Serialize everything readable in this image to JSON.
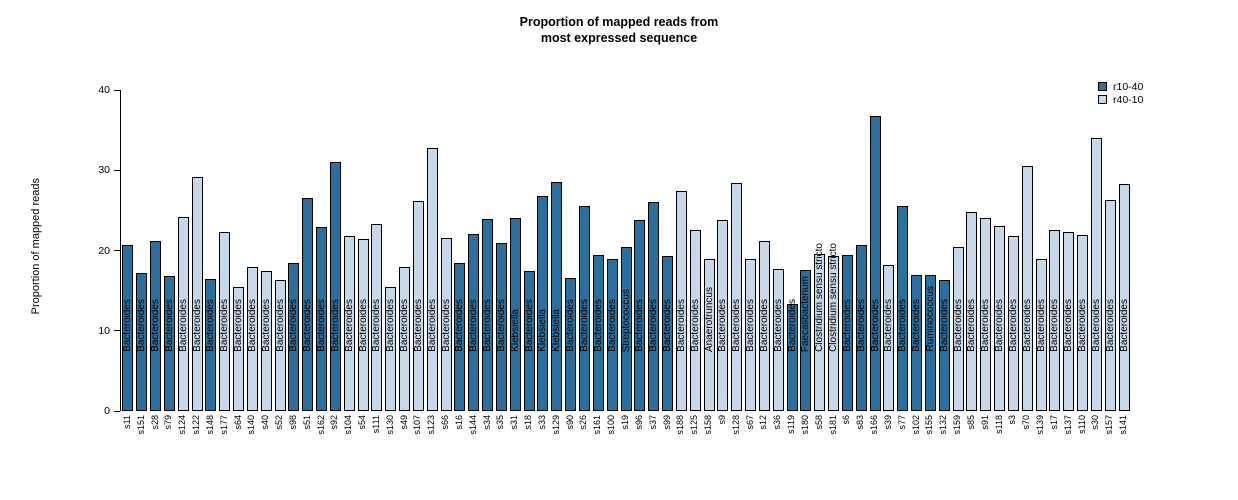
{
  "title": {
    "line1": "Proportion of mapped reads from",
    "line2": "most expressed sequence"
  },
  "y_axis": {
    "label": "Proportion of mapped reads",
    "ticks": [
      0,
      10,
      20,
      30,
      40
    ],
    "max": 40
  },
  "legend": [
    {
      "label": "r10-40",
      "color": "#2a6f9e"
    },
    {
      "label": "r40-10",
      "color": "#c6d8ea"
    }
  ],
  "chart_data": {
    "type": "bar",
    "title": "Proportion of mapped reads from most expressed sequence",
    "xlabel": "",
    "ylabel": "Proportion of mapped reads",
    "ylim": [
      0,
      40
    ],
    "grid": false,
    "legend_position": "top-right",
    "groups": {
      "r10-40": "#2a6f9e",
      "r40-10": "#c6d8ea"
    },
    "bars": [
      {
        "sample": "s11",
        "genus": "Bacteroides",
        "value": 20.7,
        "group": "r10-40"
      },
      {
        "sample": "s151",
        "genus": "Bacteroides",
        "value": 17.2,
        "group": "r10-40"
      },
      {
        "sample": "s28",
        "genus": "Bacteroides",
        "value": 21.2,
        "group": "r10-40"
      },
      {
        "sample": "s79",
        "genus": "Bacteroides",
        "value": 16.8,
        "group": "r10-40"
      },
      {
        "sample": "s124",
        "genus": "Bacteroides",
        "value": 24.2,
        "group": "r40-10"
      },
      {
        "sample": "s122",
        "genus": "Bacteroides",
        "value": 29.1,
        "group": "r40-10"
      },
      {
        "sample": "s148",
        "genus": "Bacteroides",
        "value": 16.4,
        "group": "r10-40"
      },
      {
        "sample": "s177",
        "genus": "Bacteroides",
        "value": 22.3,
        "group": "r40-10"
      },
      {
        "sample": "s64",
        "genus": "Bacteroides",
        "value": 15.4,
        "group": "r40-10"
      },
      {
        "sample": "s140",
        "genus": "Bacteroides",
        "value": 18.0,
        "group": "r40-10"
      },
      {
        "sample": "s40",
        "genus": "Bacteroides",
        "value": 17.4,
        "group": "r40-10"
      },
      {
        "sample": "s52",
        "genus": "Bacteroides",
        "value": 16.3,
        "group": "r40-10"
      },
      {
        "sample": "s98",
        "genus": "Bacteroides",
        "value": 18.4,
        "group": "r10-40"
      },
      {
        "sample": "s51",
        "genus": "Bacteroides",
        "value": 26.5,
        "group": "r10-40"
      },
      {
        "sample": "s162",
        "genus": "Bacteroides",
        "value": 22.9,
        "group": "r10-40"
      },
      {
        "sample": "s92",
        "genus": "Bacteroides",
        "value": 31.0,
        "group": "r10-40"
      },
      {
        "sample": "s104",
        "genus": "Bacteroides",
        "value": 21.8,
        "group": "r40-10"
      },
      {
        "sample": "s54",
        "genus": "Bacteroides",
        "value": 21.4,
        "group": "r40-10"
      },
      {
        "sample": "s111",
        "genus": "Bacteroides",
        "value": 23.3,
        "group": "r40-10"
      },
      {
        "sample": "s130",
        "genus": "Bacteroides",
        "value": 15.4,
        "group": "r40-10"
      },
      {
        "sample": "s49",
        "genus": "Bacteroides",
        "value": 18.0,
        "group": "r40-10"
      },
      {
        "sample": "s107",
        "genus": "Bacteroides",
        "value": 26.2,
        "group": "r40-10"
      },
      {
        "sample": "s123",
        "genus": "Bacteroides",
        "value": 32.8,
        "group": "r40-10"
      },
      {
        "sample": "s66",
        "genus": "Bacteroides",
        "value": 21.6,
        "group": "r40-10"
      },
      {
        "sample": "s16",
        "genus": "Bacteroides",
        "value": 18.5,
        "group": "r10-40"
      },
      {
        "sample": "s144",
        "genus": "Bacteroides",
        "value": 22.0,
        "group": "r10-40"
      },
      {
        "sample": "s34",
        "genus": "Bacteroides",
        "value": 23.9,
        "group": "r10-40"
      },
      {
        "sample": "s35",
        "genus": "Bacteroides",
        "value": 20.9,
        "group": "r10-40"
      },
      {
        "sample": "s31",
        "genus": "Klebsiella",
        "value": 24.0,
        "group": "r10-40"
      },
      {
        "sample": "s18",
        "genus": "Bacteroides",
        "value": 17.4,
        "group": "r10-40"
      },
      {
        "sample": "s33",
        "genus": "Klebsiella",
        "value": 26.8,
        "group": "r10-40"
      },
      {
        "sample": "s129",
        "genus": "Klebsiella",
        "value": 28.6,
        "group": "r10-40"
      },
      {
        "sample": "s90",
        "genus": "Bacteroides",
        "value": 16.6,
        "group": "r10-40"
      },
      {
        "sample": "s26",
        "genus": "Bacteroides",
        "value": 25.5,
        "group": "r10-40"
      },
      {
        "sample": "s161",
        "genus": "Bacteroides",
        "value": 19.5,
        "group": "r10-40"
      },
      {
        "sample": "s100",
        "genus": "Bacteroides",
        "value": 19.0,
        "group": "r10-40"
      },
      {
        "sample": "s19",
        "genus": "Streptococcus",
        "value": 20.4,
        "group": "r10-40"
      },
      {
        "sample": "s96",
        "genus": "Bacteroides",
        "value": 23.8,
        "group": "r10-40"
      },
      {
        "sample": "s37",
        "genus": "Bacteroides",
        "value": 26.0,
        "group": "r10-40"
      },
      {
        "sample": "s99",
        "genus": "Bacteroides",
        "value": 19.3,
        "group": "r10-40"
      },
      {
        "sample": "s188",
        "genus": "Bacteroides",
        "value": 27.4,
        "group": "r40-10"
      },
      {
        "sample": "s125",
        "genus": "Bacteroides",
        "value": 22.5,
        "group": "r40-10"
      },
      {
        "sample": "s158",
        "genus": "Anaerotruncus",
        "value": 19.0,
        "group": "r40-10"
      },
      {
        "sample": "s9",
        "genus": "Bacteroides",
        "value": 23.8,
        "group": "r40-10"
      },
      {
        "sample": "s128",
        "genus": "Bacteroides",
        "value": 28.4,
        "group": "r40-10"
      },
      {
        "sample": "s67",
        "genus": "Bacteroides",
        "value": 19.0,
        "group": "r40-10"
      },
      {
        "sample": "s12",
        "genus": "Bacteroides",
        "value": 21.2,
        "group": "r40-10"
      },
      {
        "sample": "s36",
        "genus": "Bacteroides",
        "value": 17.7,
        "group": "r40-10"
      },
      {
        "sample": "s119",
        "genus": "Bacteroides",
        "value": 13.3,
        "group": "r10-40"
      },
      {
        "sample": "s180",
        "genus": "Faecalibacterium",
        "value": 17.6,
        "group": "r10-40"
      },
      {
        "sample": "s58",
        "genus": "Clostridium sensu stricto",
        "value": 19.6,
        "group": "r40-10"
      },
      {
        "sample": "s181",
        "genus": "Clostridium sensu stricto",
        "value": 19.3,
        "group": "r40-10"
      },
      {
        "sample": "s6",
        "genus": "Bacteroides",
        "value": 19.4,
        "group": "r10-40"
      },
      {
        "sample": "s83",
        "genus": "Bacteroides",
        "value": 20.7,
        "group": "r10-40"
      },
      {
        "sample": "s166",
        "genus": "Bacteroides",
        "value": 36.8,
        "group": "r10-40"
      },
      {
        "sample": "s39",
        "genus": "Bacteroides",
        "value": 18.2,
        "group": "r40-10"
      },
      {
        "sample": "s77",
        "genus": "Bacteroides",
        "value": 25.5,
        "group": "r10-40"
      },
      {
        "sample": "s102",
        "genus": "Bacteroides",
        "value": 17.0,
        "group": "r10-40"
      },
      {
        "sample": "s155",
        "genus": "Ruminococcus",
        "value": 17.0,
        "group": "r10-40"
      },
      {
        "sample": "s132",
        "genus": "Bacteroides",
        "value": 16.3,
        "group": "r10-40"
      },
      {
        "sample": "s159",
        "genus": "Bacteroides",
        "value": 20.4,
        "group": "r40-10"
      },
      {
        "sample": "s85",
        "genus": "Bacteroides",
        "value": 24.8,
        "group": "r40-10"
      },
      {
        "sample": "s91",
        "genus": "Bacteroides",
        "value": 24.0,
        "group": "r40-10"
      },
      {
        "sample": "s118",
        "genus": "Bacteroides",
        "value": 23.0,
        "group": "r40-10"
      },
      {
        "sample": "s3",
        "genus": "Bacteroides",
        "value": 21.8,
        "group": "r40-10"
      },
      {
        "sample": "s70",
        "genus": "Bacteroides",
        "value": 30.5,
        "group": "r40-10"
      },
      {
        "sample": "s139",
        "genus": "Bacteroides",
        "value": 19.0,
        "group": "r40-10"
      },
      {
        "sample": "s17",
        "genus": "Bacteroides",
        "value": 22.6,
        "group": "r40-10"
      },
      {
        "sample": "s137",
        "genus": "Bacteroides",
        "value": 22.3,
        "group": "r40-10"
      },
      {
        "sample": "s110",
        "genus": "Bacteroides",
        "value": 21.9,
        "group": "r40-10"
      },
      {
        "sample": "s30",
        "genus": "Bacteroides",
        "value": 34.0,
        "group": "r40-10"
      },
      {
        "sample": "s157",
        "genus": "Bacteroides",
        "value": 26.3,
        "group": "r40-10"
      },
      {
        "sample": "s141",
        "genus": "Bacteroides",
        "value": 28.3,
        "group": "r40-10"
      }
    ]
  }
}
